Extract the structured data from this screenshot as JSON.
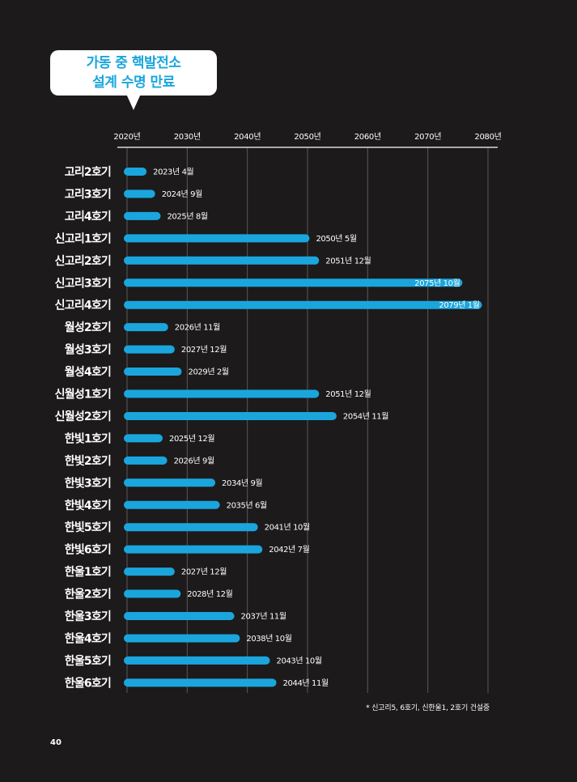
{
  "bubble": {
    "line1": "가동 중 핵발전소",
    "line2": "설계 수명 만료"
  },
  "footnote": "* 신고리5, 6호기, 신한울1, 2호기 건설중",
  "page_number": "40",
  "colors": {
    "background": "#1c1a1b",
    "bar": "#1aa6dd",
    "text": "#ffffff",
    "grid": "#5a5858"
  },
  "chart_data": {
    "type": "bar",
    "orientation": "horizontal",
    "x_axis_position": "top",
    "xlim": [
      2020,
      2080
    ],
    "xticks": [
      "2020년",
      "2030년",
      "2040년",
      "2050년",
      "2060년",
      "2070년",
      "2080년"
    ],
    "grid": true,
    "categories": [
      "고리2호기",
      "고리3호기",
      "고리4호기",
      "신고리1호기",
      "신고리2호기",
      "신고리3호기",
      "신고리4호기",
      "월성2호기",
      "월성3호기",
      "월성4호기",
      "신월성1호기",
      "신월성2호기",
      "한빛1호기",
      "한빛2호기",
      "한빛3호기",
      "한빛4호기",
      "한빛5호기",
      "한빛6호기",
      "한울1호기",
      "한울2호기",
      "한울3호기",
      "한울4호기",
      "한울5호기",
      "한울6호기"
    ],
    "values": [
      2023.25,
      2024.67,
      2025.58,
      2050.33,
      2051.92,
      2075.75,
      2079.0,
      2026.83,
      2027.92,
      2029.08,
      2051.92,
      2054.83,
      2025.92,
      2026.67,
      2034.67,
      2035.42,
      2041.75,
      2042.5,
      2027.92,
      2028.92,
      2037.83,
      2038.75,
      2043.75,
      2044.83
    ],
    "labels": [
      "2023년 4월",
      "2024년 9월",
      "2025년 8월",
      "2050년 5월",
      "2051년 12월",
      "2075년 10월",
      "2079년 1월",
      "2026년 11월",
      "2027년 12월",
      "2029년 2월",
      "2051년 12월",
      "2054년 11월",
      "2025년 12월",
      "2026년 9월",
      "2034년 9월",
      "2035년 6월",
      "2041년 10월",
      "2042년 7월",
      "2027년 12월",
      "2028년 12월",
      "2037년 11월",
      "2038년 10월",
      "2043년 10월",
      "2044년 11월"
    ],
    "labels_inside": [
      false,
      false,
      false,
      false,
      false,
      true,
      true,
      false,
      false,
      false,
      false,
      false,
      false,
      false,
      false,
      false,
      false,
      false,
      false,
      false,
      false,
      false,
      false,
      false
    ]
  }
}
